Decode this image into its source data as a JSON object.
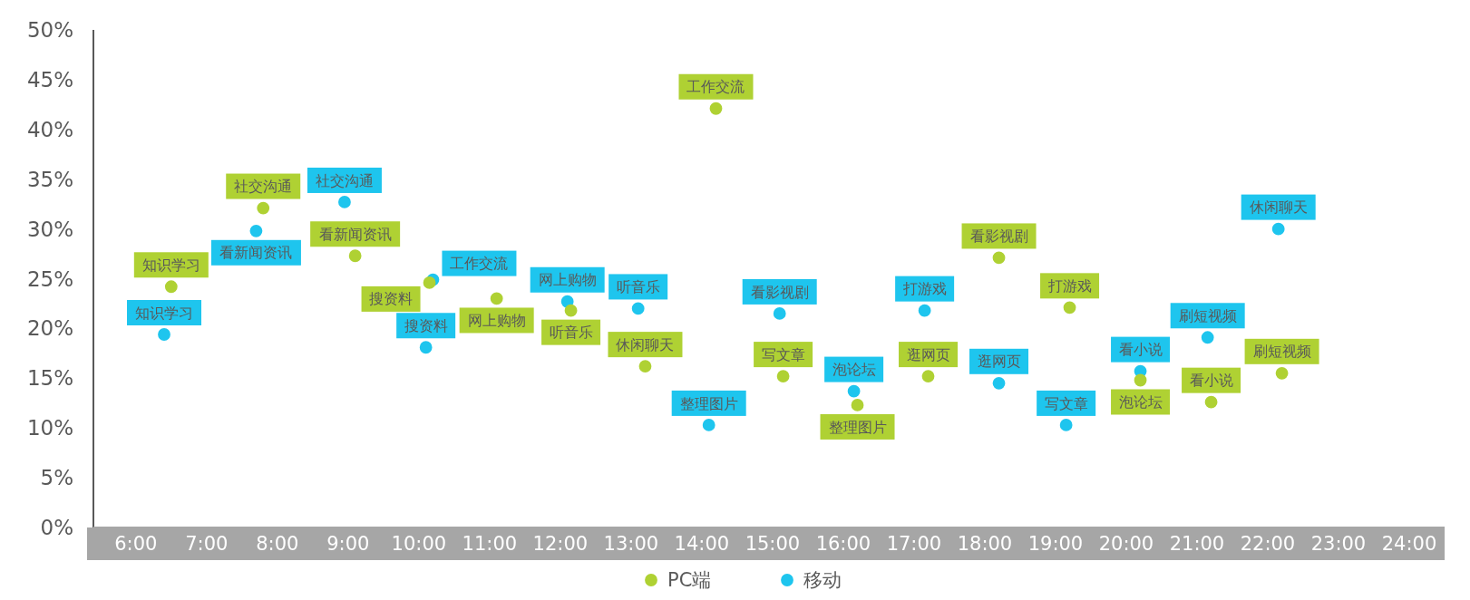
{
  "chart_data": {
    "type": "scatter",
    "xlim": [
      5.4,
      24.5
    ],
    "ylim": [
      0,
      50
    ],
    "xticks": [
      {
        "value": 6,
        "label": "6:00"
      },
      {
        "value": 7,
        "label": "7:00"
      },
      {
        "value": 8,
        "label": "8:00"
      },
      {
        "value": 9,
        "label": "9:00"
      },
      {
        "value": 10,
        "label": "10:00"
      },
      {
        "value": 11,
        "label": "11:00"
      },
      {
        "value": 12,
        "label": "12:00"
      },
      {
        "value": 13,
        "label": "13:00"
      },
      {
        "value": 14,
        "label": "14:00"
      },
      {
        "value": 15,
        "label": "15:00"
      },
      {
        "value": 16,
        "label": "16:00"
      },
      {
        "value": 17,
        "label": "17:00"
      },
      {
        "value": 18,
        "label": "18:00"
      },
      {
        "value": 19,
        "label": "19:00"
      },
      {
        "value": 20,
        "label": "20:00"
      },
      {
        "value": 21,
        "label": "21:00"
      },
      {
        "value": 22,
        "label": "22:00"
      },
      {
        "value": 23,
        "label": "23:00"
      },
      {
        "value": 24,
        "label": "24:00"
      }
    ],
    "yticks": [
      {
        "value": 0,
        "label": "0%"
      },
      {
        "value": 5,
        "label": "5%"
      },
      {
        "value": 10,
        "label": "10%"
      },
      {
        "value": 15,
        "label": "15%"
      },
      {
        "value": 20,
        "label": "20%"
      },
      {
        "value": 25,
        "label": "25%"
      },
      {
        "value": 30,
        "label": "30%"
      },
      {
        "value": 35,
        "label": "35%"
      },
      {
        "value": 40,
        "label": "40%"
      },
      {
        "value": 45,
        "label": "45%"
      },
      {
        "value": 50,
        "label": "50%"
      }
    ],
    "marker": "circle",
    "legend": "bottom",
    "grid": false,
    "series": [
      {
        "name": "移动",
        "color": "#1ec5ee",
        "x": [
          6.4,
          7.7,
          8.95,
          10.2,
          10.1,
          12.1,
          13.1,
          14.1,
          15.1,
          16.15,
          17.15,
          18.2,
          19.15,
          20.2,
          21.15,
          22.15
        ],
        "values": [
          19.4,
          29.8,
          32.7,
          24.9,
          18.1,
          22.7,
          22.0,
          10.3,
          21.5,
          13.7,
          21.8,
          14.5,
          10.3,
          15.7,
          19.1,
          30.0
        ],
        "value_labels": [
          "知识学习",
          "看新闻资讯",
          "社交沟通",
          "工作交流",
          "搜资料",
          "网上购物",
          "听音乐",
          "整理图片",
          "看影视剧",
          "泡论坛",
          "打游戏",
          "逛网页",
          "写文章",
          "看小说",
          "刷短视频",
          "休闲聊天"
        ]
      },
      {
        "name": "PC端",
        "color": "#afd133",
        "x": [
          6.5,
          7.8,
          9.1,
          10.15,
          11.1,
          12.15,
          13.2,
          14.2,
          15.15,
          16.2,
          17.2,
          18.2,
          19.2,
          20.2,
          21.2,
          22.2
        ],
        "values": [
          24.2,
          32.1,
          27.3,
          24.6,
          23.0,
          21.8,
          16.2,
          42.1,
          15.2,
          12.3,
          15.2,
          27.1,
          22.1,
          14.8,
          12.6,
          15.5
        ],
        "value_labels": [
          "知识学习",
          "社交沟通",
          "看新闻资讯",
          "搜资料",
          "网上购物",
          "听音乐",
          "休闲聊天",
          "工作交流",
          "写文章",
          "整理图片",
          "逛网页",
          "看影视剧",
          "打游戏",
          "泡论坛",
          "看小说",
          "刷短视频"
        ]
      }
    ]
  }
}
